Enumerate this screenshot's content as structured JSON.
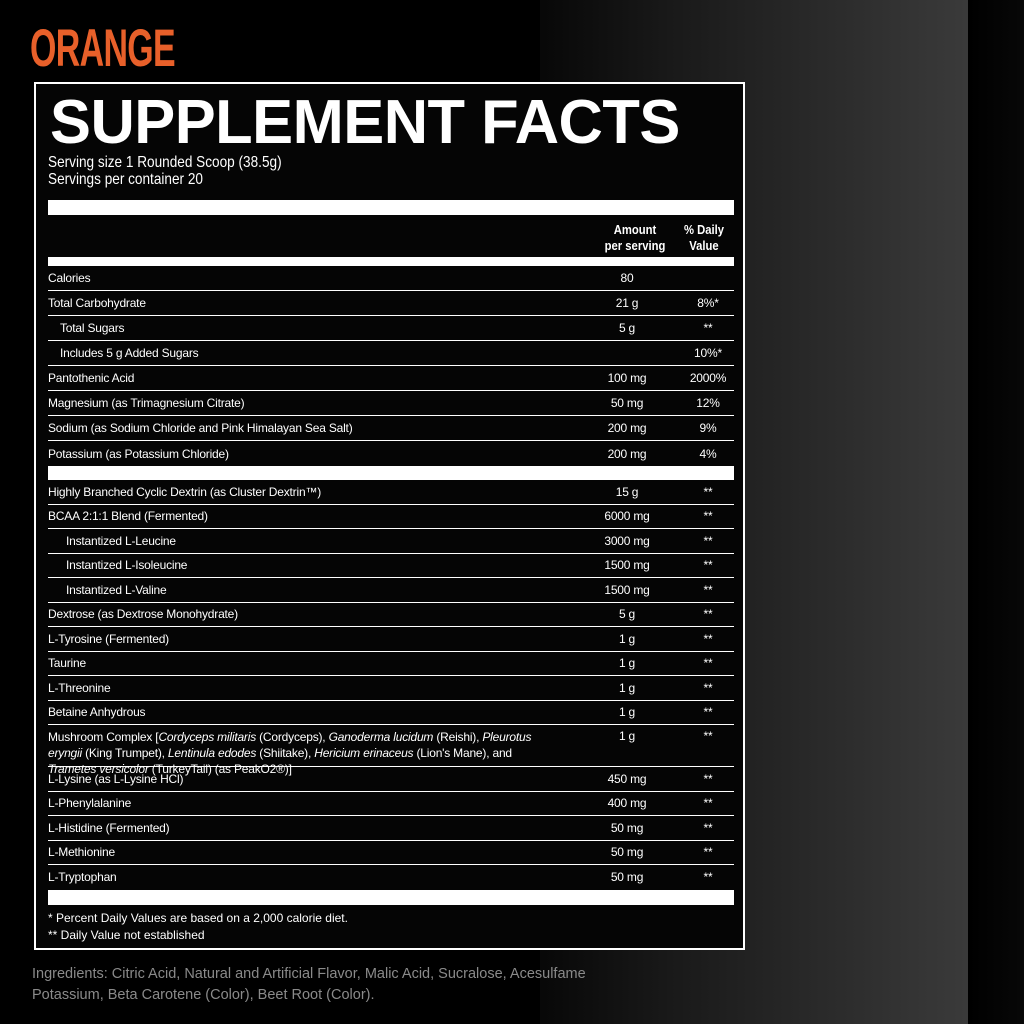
{
  "flavor": "ORANGE",
  "title": "SUPPLEMENT FACTS",
  "serving_size": "Serving size 1 Rounded Scoop (38.5g)",
  "servings_per_container": "Servings per container 20",
  "header": {
    "amount_1": "Amount",
    "amount_2": "per serving",
    "dv_1": "% Daily",
    "dv_2": "Value"
  },
  "colors": {
    "accent": "#e8602a",
    "panel": "#050505",
    "ingredients_text": "#8a8a8a"
  },
  "section1": [
    {
      "name": "Calories",
      "amount": "80",
      "dv": ""
    },
    {
      "name": "Total Carbohydrate",
      "amount": "21 g",
      "dv": "8%*"
    },
    {
      "name": "Total Sugars",
      "amount": "5 g",
      "dv": "**",
      "indent": 1
    },
    {
      "name": "Includes 5 g Added Sugars",
      "amount": "",
      "dv": "10%*",
      "indent": 1
    },
    {
      "name": "Pantothenic Acid",
      "amount": "100 mg",
      "dv": "2000%"
    },
    {
      "name": "Magnesium (as Trimagnesium Citrate)",
      "amount": "50 mg",
      "dv": "12%"
    },
    {
      "name": "Sodium (as Sodium Chloride and Pink Himalayan Sea Salt)",
      "amount": "200 mg",
      "dv": "9%"
    },
    {
      "name": "Potassium (as Potassium Chloride)",
      "amount": "200 mg",
      "dv": "4%"
    }
  ],
  "section2": [
    {
      "name": "Highly Branched Cyclic Dextrin (as Cluster Dextrin™)",
      "amount": "15 g",
      "dv": "**"
    },
    {
      "name": "BCAA 2:1:1 Blend (Fermented)",
      "amount": "6000 mg",
      "dv": "**"
    },
    {
      "name": "Instantized L-Leucine",
      "amount": "3000 mg",
      "dv": "**",
      "indent": 2
    },
    {
      "name": "Instantized L-Isoleucine",
      "amount": "1500 mg",
      "dv": "**",
      "indent": 2
    },
    {
      "name": "Instantized L-Valine",
      "amount": "1500 mg",
      "dv": "**",
      "indent": 2
    },
    {
      "name": "Dextrose (as Dextrose Monohydrate)",
      "amount": "5 g",
      "dv": "**"
    },
    {
      "name": "L-Tyrosine (Fermented)",
      "amount": "1 g",
      "dv": "**"
    },
    {
      "name": "Taurine",
      "amount": "1 g",
      "dv": "**"
    },
    {
      "name": "L-Threonine",
      "amount": "1 g",
      "dv": "**"
    },
    {
      "name": "Betaine Anhydrous",
      "amount": "1 g",
      "dv": "**"
    },
    {
      "segments": [
        {
          "t": "Mushroom Complex [",
          "i": false
        },
        {
          "t": "Cordyceps militaris",
          "i": true
        },
        {
          "t": " (Cordyceps), ",
          "i": false
        },
        {
          "t": "Ganoderma lucidum",
          "i": true
        },
        {
          "t": " (Reishi), ",
          "i": false
        },
        {
          "t": "Pleurotus eryngii",
          "i": true
        },
        {
          "t": " (King Trumpet), ",
          "i": false
        },
        {
          "t": "Lentinula edodes",
          "i": true
        },
        {
          "t": " (Shiitake), ",
          "i": false
        },
        {
          "t": "Hericium erinaceus",
          "i": true
        },
        {
          "t": " (Lion's Mane), and ",
          "i": false
        },
        {
          "t": "Trametes versicolor",
          "i": true
        },
        {
          "t": " (TurkeyTail) (as PeakO2®)]",
          "i": false
        }
      ],
      "amount": "1 g",
      "dv": "**"
    },
    {
      "name": "L-Lysine (as L-Lysine HCl)",
      "amount": "450 mg",
      "dv": "**"
    },
    {
      "name": "L-Phenylalanine",
      "amount": "400 mg",
      "dv": "**"
    },
    {
      "name": "L-Histidine (Fermented)",
      "amount": "50 mg",
      "dv": "**"
    },
    {
      "name": "L-Methionine",
      "amount": "50 mg",
      "dv": "**"
    },
    {
      "name": "L-Tryptophan",
      "amount": "50 mg",
      "dv": "**"
    }
  ],
  "footnotes": [
    "* Percent Daily Values are based on a 2,000 calorie diet.",
    "** Daily Value not established"
  ],
  "ingredients": "Ingredients: Citric Acid, Natural and Artificial Flavor, Malic Acid, Sucralose, Acesulfame Potassium, Beta Carotene (Color), Beet Root (Color)."
}
